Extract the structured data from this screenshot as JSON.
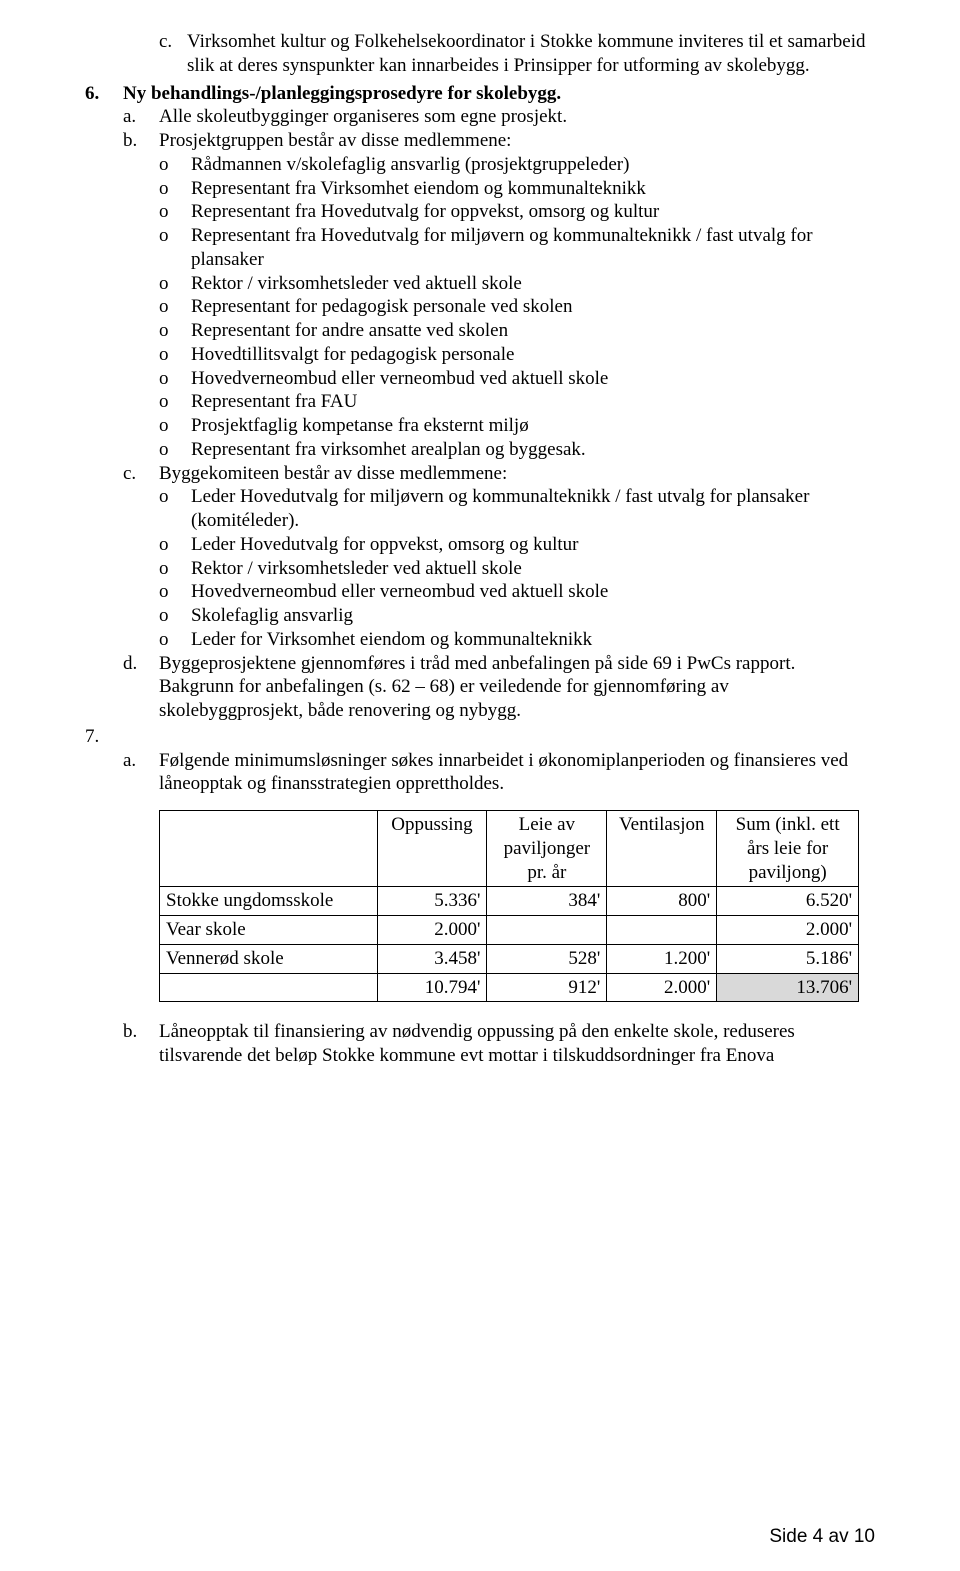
{
  "item_c_top": {
    "marker": "c.",
    "text": "Virksomhet kultur og Folkehelsekoordinator i Stokke kommune inviteres til et samarbeid slik at deres synspunkter kan innarbeides i Prinsipper for utforming av skolebygg."
  },
  "item6": {
    "num": "6.",
    "title": "Ny behandlings-/planleggingsprosedyre for skolebygg.",
    "a": {
      "marker": "a.",
      "text": "Alle skoleutbygginger organiseres som egne prosjekt."
    },
    "b": {
      "marker": "b.",
      "text": "Prosjektgruppen består av disse medlemmene:"
    },
    "b_items": [
      "Rådmannen v/skolefaglig ansvarlig (prosjektgruppeleder)",
      "Representant fra Virksomhet eiendom og kommunalteknikk",
      "Representant fra Hovedutvalg for oppvekst, omsorg og kultur",
      "Representant fra Hovedutvalg for miljøvern og kommunalteknikk / fast utvalg for plansaker",
      "Rektor / virksomhetsleder ved aktuell skole",
      "Representant for pedagogisk personale ved skolen",
      "Representant for andre ansatte ved skolen",
      "Hovedtillitsvalgt for pedagogisk personale",
      "Hovedverneombud eller verneombud ved aktuell skole",
      "Representant fra FAU",
      "Prosjektfaglig kompetanse fra eksternt miljø",
      "Representant fra virksomhet arealplan og byggesak."
    ],
    "c": {
      "marker": "c.",
      "text": "Byggekomiteen består av disse medlemmene:"
    },
    "c_items": [
      "Leder Hovedutvalg for miljøvern og kommunalteknikk / fast utvalg for plansaker (komitéleder).",
      "Leder Hovedutvalg for oppvekst, omsorg og kultur",
      "Rektor / virksomhetsleder ved aktuell skole",
      "Hovedverneombud eller verneombud ved aktuell skole",
      "Skolefaglig ansvarlig",
      "Leder for Virksomhet eiendom og kommunalteknikk"
    ],
    "d": {
      "marker": "d.",
      "text": "Byggeprosjektene gjennomføres i tråd med anbefalingen på side 69 i PwCs rapport. Bakgrunn for anbefalingen (s. 62 – 68) er veiledende for gjennomføring av skolebyggprosjekt, både renovering og nybygg."
    }
  },
  "item7": {
    "num": "7.",
    "a": {
      "marker": "a.",
      "text": "Følgende minimumsløsninger søkes innarbeidet i økonomiplanperioden og finansieres ved låneopptak og finansstrategien opprettholdes."
    },
    "b": {
      "marker": "b.",
      "text": "Låneopptak til finansiering av nødvendig oppussing på den enkelte skole, reduseres tilsvarende det beløp Stokke kommune evt mottar i tilskuddsordninger fra Enova"
    }
  },
  "bullet_char": "o",
  "table": {
    "headers": [
      "",
      "Oppussing",
      "Leie av paviljonger pr. år",
      "Ventilasjon",
      "Sum (inkl. ett års leie for paviljong)"
    ],
    "rows": [
      [
        "Stokke ungdomsskole",
        "5.336'",
        "384'",
        "800'",
        "6.520'"
      ],
      [
        "Vear skole",
        "2.000'",
        "",
        "",
        "2.000'"
      ],
      [
        "Vennerød skole",
        "3.458'",
        "528'",
        "1.200'",
        "5.186'"
      ],
      [
        "",
        "10.794'",
        "912'",
        "2.000'",
        "13.706'"
      ]
    ],
    "col_widths": [
      "218px",
      "110px",
      "120px",
      "110px",
      "142px"
    ],
    "highlight_cell": {
      "row": 3,
      "col": 4
    },
    "highlight_color": "#d9d9d9"
  },
  "footer": "Side 4 av 10"
}
